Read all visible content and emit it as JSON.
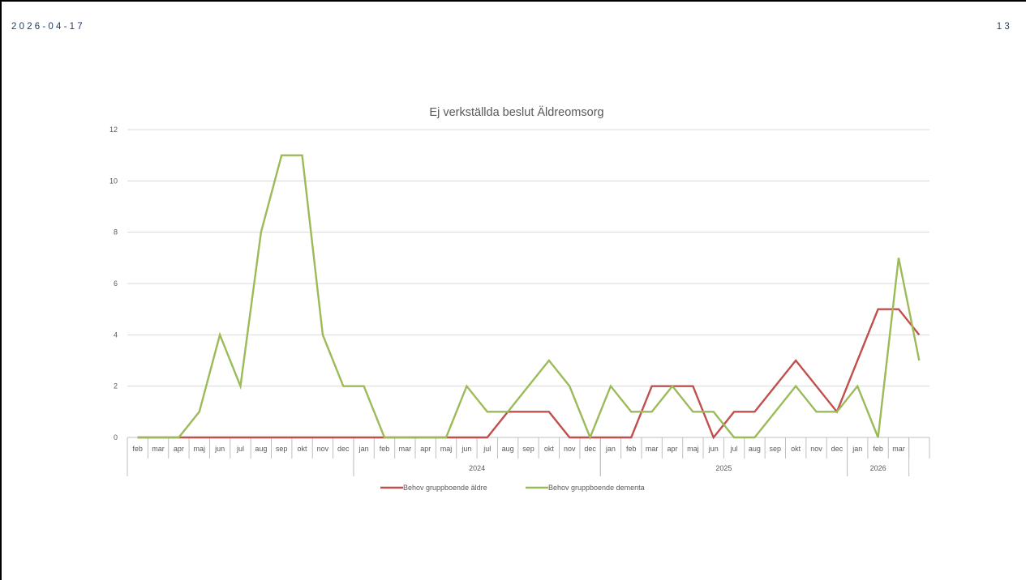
{
  "slide": {
    "date": "2026-04-17",
    "page_number": "13"
  },
  "colors": {
    "series_1": "#c0504d",
    "series_2": "#9bbb59",
    "gridline": "#d9d9d9",
    "axis": "#bfbfbf",
    "text": "#595959",
    "slide_text": "#1f3a5f"
  },
  "chart_data": {
    "type": "line",
    "title": "Ej verkställda beslut Äldreomsorg",
    "xlabel": "",
    "ylabel": "",
    "ylim": [
      0,
      12
    ],
    "yticks": [
      0,
      2,
      4,
      6,
      8,
      10,
      12
    ],
    "grid": true,
    "legend_position": "bottom",
    "categories": [
      "feb",
      "mar",
      "apr",
      "maj",
      "jun",
      "jul",
      "aug",
      "sep",
      "okt",
      "nov",
      "dec",
      "jan",
      "feb",
      "mar",
      "apr",
      "maj",
      "jun",
      "jul",
      "aug",
      "sep",
      "okt",
      "nov",
      "dec",
      "jan",
      "feb",
      "mar",
      "apr",
      "maj",
      "jun",
      "jul",
      "aug",
      "sep",
      "okt",
      "nov",
      "dec",
      "jan",
      "feb",
      "mar",
      ""
    ],
    "year_groups": [
      {
        "label": "",
        "start": 0,
        "end": 10
      },
      {
        "label": "2024",
        "start": 11,
        "end": 22
      },
      {
        "label": "2025",
        "start": 23,
        "end": 34
      },
      {
        "label": "2026",
        "start": 35,
        "end": 37
      }
    ],
    "series": [
      {
        "name": "Behov gruppboende äldre",
        "color": "#c0504d",
        "values": [
          0,
          0,
          0,
          0,
          0,
          0,
          0,
          0,
          0,
          0,
          0,
          0,
          0,
          0,
          0,
          0,
          0,
          0,
          1,
          1,
          1,
          0,
          0,
          0,
          0,
          2,
          2,
          2,
          0,
          1,
          1,
          2,
          3,
          2,
          1,
          3,
          5,
          5,
          4
        ]
      },
      {
        "name": "Behov gruppboende dementa",
        "color": "#9bbb59",
        "values": [
          0,
          0,
          0,
          1,
          4,
          2,
          8,
          11,
          11,
          4,
          2,
          2,
          0,
          0,
          0,
          0,
          2,
          1,
          1,
          2,
          3,
          2,
          0,
          2,
          1,
          1,
          2,
          1,
          1,
          0,
          0,
          1,
          2,
          1,
          1,
          2,
          0,
          7,
          3
        ]
      }
    ]
  }
}
